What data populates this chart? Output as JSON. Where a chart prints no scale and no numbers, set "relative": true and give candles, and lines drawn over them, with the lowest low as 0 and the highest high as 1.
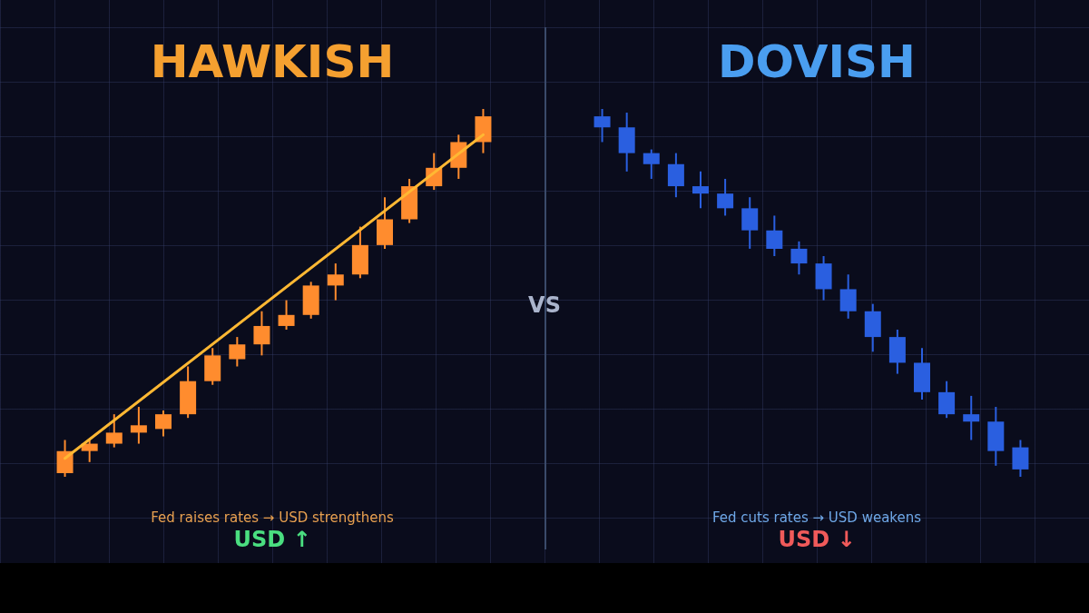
{
  "chart_data": [
    {
      "type": "candlestick",
      "title": "HAWKISH",
      "relative": true,
      "categories": [
        null,
        null,
        null,
        null,
        null,
        null,
        null,
        null,
        null,
        null,
        null,
        null,
        null,
        null,
        null,
        null,
        null,
        null
      ],
      "series": [
        {
          "color": "#ff8c2e",
          "ohlc": [
            [
              0.01,
              0.1,
              0,
              0.07
            ],
            [
              0.07,
              0.1,
              0.04,
              0.09
            ],
            [
              0.09,
              0.17,
              0.08,
              0.12
            ],
            [
              0.12,
              0.19,
              0.09,
              0.14
            ],
            [
              0.13,
              0.18,
              0.11,
              0.17
            ],
            [
              0.17,
              0.3,
              0.16,
              0.26
            ],
            [
              0.26,
              0.35,
              0.25,
              0.33
            ],
            [
              0.32,
              0.38,
              0.3,
              0.36
            ],
            [
              0.36,
              0.45,
              0.33,
              0.41
            ],
            [
              0.41,
              0.48,
              0.4,
              0.44
            ],
            [
              0.44,
              0.53,
              0.43,
              0.52
            ],
            [
              0.52,
              0.58,
              0.48,
              0.55
            ],
            [
              0.55,
              0.68,
              0.54,
              0.63
            ],
            [
              0.63,
              0.76,
              0.62,
              0.7
            ],
            [
              0.7,
              0.81,
              0.69,
              0.79
            ],
            [
              0.79,
              0.88,
              0.78,
              0.84
            ],
            [
              0.84,
              0.93,
              0.81,
              0.91
            ],
            [
              0.91,
              1,
              0.88,
              0.98
            ]
          ]
        },
        {
          "type": "line",
          "color": "#ffb833",
          "values": [
            0.05,
            null,
            null,
            null,
            null,
            null,
            null,
            null,
            null,
            null,
            null,
            null,
            null,
            null,
            null,
            null,
            null,
            0.93
          ]
        }
      ],
      "annotations": [
        "Fed raises rates → USD strengthens",
        "USD ↑",
        "VS"
      ]
    },
    {
      "type": "candlestick",
      "title": "DOVISH",
      "relative": true,
      "categories": [
        null,
        null,
        null,
        null,
        null,
        null,
        null,
        null,
        null,
        null,
        null,
        null,
        null,
        null,
        null,
        null,
        null,
        null
      ],
      "series": [
        {
          "color": "#2a5fe0",
          "ohlc": [
            [
              0.98,
              1,
              0.91,
              0.95
            ],
            [
              0.95,
              0.99,
              0.83,
              0.88
            ],
            [
              0.88,
              0.89,
              0.81,
              0.85
            ],
            [
              0.85,
              0.88,
              0.76,
              0.79
            ],
            [
              0.79,
              0.83,
              0.73,
              0.77
            ],
            [
              0.77,
              0.81,
              0.71,
              0.73
            ],
            [
              0.73,
              0.76,
              0.62,
              0.67
            ],
            [
              0.67,
              0.71,
              0.6,
              0.62
            ],
            [
              0.62,
              0.64,
              0.55,
              0.58
            ],
            [
              0.58,
              0.6,
              0.48,
              0.51
            ],
            [
              0.51,
              0.55,
              0.43,
              0.45
            ],
            [
              0.45,
              0.47,
              0.34,
              0.38
            ],
            [
              0.38,
              0.4,
              0.28,
              0.31
            ],
            [
              0.31,
              0.35,
              0.21,
              0.23
            ],
            [
              0.23,
              0.26,
              0.16,
              0.17
            ],
            [
              0.17,
              0.22,
              0.1,
              0.15
            ],
            [
              0.15,
              0.19,
              0.03,
              0.07
            ],
            [
              0.08,
              0.1,
              0,
              0.02
            ]
          ]
        }
      ],
      "annotations": [
        "Fed cuts rates → USD weakens",
        "USD ↓"
      ]
    }
  ]
}
